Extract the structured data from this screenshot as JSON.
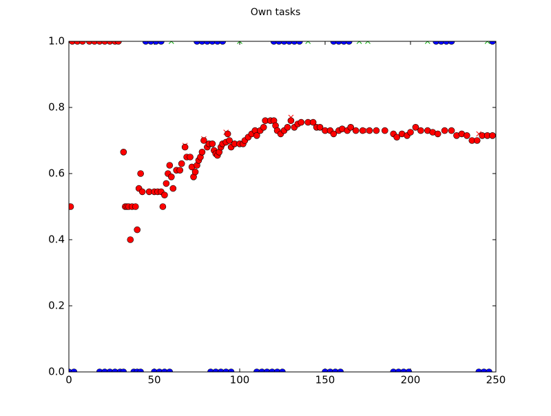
{
  "chart_data": {
    "type": "scatter",
    "title": "Own tasks",
    "xlim": [
      0,
      250
    ],
    "ylim": [
      0,
      1
    ],
    "xticks": [
      0,
      50,
      100,
      150,
      200,
      250
    ],
    "yticks": [
      {
        "value": 0,
        "label": "0.0"
      },
      0.2,
      0.4,
      0.6,
      0.8,
      {
        "value": 1,
        "label": "1.0"
      }
    ],
    "grid": false,
    "series": [
      {
        "color": "#0000ff",
        "marker": "circle",
        "x": [
          0,
          3,
          18,
          21,
          24,
          27,
          30,
          32,
          38,
          40,
          42,
          50,
          53,
          56,
          59,
          83,
          86,
          89,
          92,
          95,
          110,
          113,
          116,
          119,
          122,
          125,
          150,
          153,
          156,
          159,
          190,
          193,
          196,
          199,
          240,
          243,
          246,
          45,
          48,
          51,
          54,
          75,
          78,
          81,
          84,
          87,
          90,
          120,
          123,
          126,
          129,
          132,
          135,
          155,
          158,
          161,
          164,
          215,
          218,
          221,
          224,
          248
        ],
        "values": [
          0,
          0,
          0,
          0,
          0,
          0,
          0,
          0,
          0,
          0,
          0,
          0,
          0,
          0,
          0,
          0,
          0,
          0,
          0,
          0,
          0,
          0,
          0,
          0,
          0,
          0,
          0,
          0,
          0,
          0,
          0,
          0,
          0,
          0,
          0,
          0,
          0,
          1,
          1,
          1,
          1,
          1,
          1,
          1,
          1,
          1,
          1,
          1,
          1,
          1,
          1,
          1,
          1,
          1,
          1,
          1,
          1,
          1,
          1,
          1,
          1,
          1
        ]
      },
      {
        "color": "#00aa00",
        "marker": "x",
        "x": [
          60,
          100,
          140,
          170,
          175,
          210,
          245
        ],
        "values": [
          1,
          1,
          1,
          1,
          1,
          1,
          1
        ]
      },
      {
        "color": "#ff0000",
        "marker": "x",
        "x": [
          68,
          79,
          92,
          130,
          175,
          240
        ],
        "values": [
          0.685,
          0.705,
          0.725,
          0.77,
          0.73,
          0.72
        ]
      },
      {
        "color": "#ff0000",
        "marker": "circle",
        "x": [
          1,
          2,
          5,
          8,
          12,
          15,
          18,
          21,
          24,
          27,
          29,
          32,
          33,
          34,
          35,
          36,
          37,
          39,
          40,
          41,
          42,
          43,
          47,
          50,
          52,
          54,
          55,
          56,
          57,
          58,
          59,
          60,
          61,
          63,
          65,
          66,
          68,
          69,
          71,
          72,
          73,
          74,
          75,
          76,
          77,
          78,
          79,
          81,
          82,
          84,
          85,
          86,
          87,
          88,
          89,
          90,
          92,
          93,
          94,
          95,
          97,
          100,
          102,
          103,
          105,
          107,
          109,
          110,
          112,
          114,
          115,
          118,
          120,
          121,
          122,
          124,
          126,
          128,
          130,
          132,
          134,
          136,
          140,
          143,
          145,
          147,
          150,
          153,
          155,
          158,
          160,
          163,
          165,
          168,
          172,
          176,
          180,
          185,
          190,
          192,
          195,
          198,
          200,
          203,
          206,
          210,
          213,
          216,
          220,
          224,
          227,
          230,
          233,
          236,
          239,
          242,
          245,
          248
        ],
        "values": [
          0.5,
          1,
          1,
          1,
          1,
          1,
          1,
          1,
          1,
          1,
          1,
          0.665,
          0.5,
          0.5,
          0.5,
          0.4,
          0.5,
          0.5,
          0.43,
          0.555,
          0.6,
          0.545,
          0.545,
          0.545,
          0.545,
          0.545,
          0.5,
          0.535,
          0.57,
          0.6,
          0.625,
          0.59,
          0.555,
          0.61,
          0.61,
          0.63,
          0.68,
          0.65,
          0.65,
          0.62,
          0.59,
          0.605,
          0.625,
          0.64,
          0.65,
          0.665,
          0.7,
          0.68,
          0.69,
          0.69,
          0.67,
          0.66,
          0.655,
          0.665,
          0.68,
          0.69,
          0.695,
          0.72,
          0.7,
          0.68,
          0.69,
          0.69,
          0.69,
          0.7,
          0.71,
          0.72,
          0.73,
          0.715,
          0.73,
          0.74,
          0.76,
          0.76,
          0.76,
          0.745,
          0.73,
          0.72,
          0.73,
          0.74,
          0.76,
          0.74,
          0.75,
          0.755,
          0.755,
          0.755,
          0.74,
          0.74,
          0.73,
          0.73,
          0.72,
          0.73,
          0.735,
          0.73,
          0.74,
          0.73,
          0.73,
          0.73,
          0.73,
          0.73,
          0.72,
          0.71,
          0.72,
          0.715,
          0.725,
          0.74,
          0.73,
          0.73,
          0.725,
          0.72,
          0.73,
          0.73,
          0.715,
          0.72,
          0.715,
          0.7,
          0.7,
          0.715,
          0.715,
          0.715
        ]
      }
    ]
  }
}
